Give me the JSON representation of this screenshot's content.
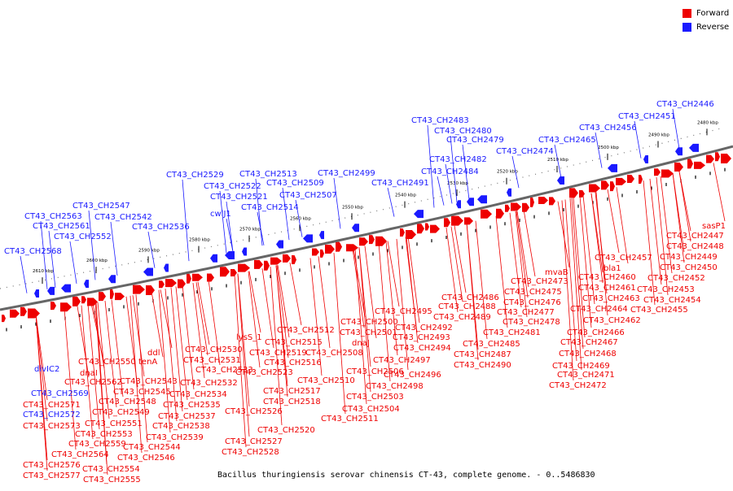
{
  "legend": {
    "forward_label": "Forward",
    "reverse_label": "Reverse",
    "forward_color": "#ee0000",
    "reverse_color": "#1a1aff"
  },
  "caption": "Bacillus thuringiensis serovar chinensis CT-43, complete genome. - 0..5486830",
  "colors": {
    "forward": "#ee0000",
    "reverse": "#1a1aff",
    "backbone": "#666666"
  },
  "scale_labels": [
    "2480 kbp",
    "2490 kbp",
    "2500 kbp",
    "2510 kbp",
    "2520 kbp",
    "2530 kbp",
    "2540 kbp",
    "2550 kbp",
    "2560 kbp",
    "2570 kbp",
    "2580 kbp",
    "2590 kbp",
    "2600 kbp",
    "2610 kbp"
  ],
  "reverse_labels": [
    "CT43_CH2446",
    "CT43_CH2451",
    "CT43_CH2456",
    "CT43_CH2465",
    "CT43_CH2474",
    "CT43_CH2483",
    "CT43_CH2480",
    "CT43_CH2479",
    "CT43_CH2482",
    "CT43_CH2484",
    "CT43_CH2491",
    "CT43_CH2499",
    "CT43_CH2513",
    "CT43_CH2509",
    "CT43_CH2507",
    "CT43_CH2514",
    "CT43_CH2529",
    "CT43_CH2522",
    "CT43_CH2521",
    "cwlJ1",
    "CT43_CH2547",
    "CT43_CH2542",
    "CT43_CH2536",
    "CT43_CH2563",
    "CT43_CH2561",
    "CT43_CH2552",
    "CT43_CH2568",
    "divIC2",
    "CT43_CH2569",
    "CT43_CH2572"
  ],
  "forward_labels": [
    "sasP1",
    "CT43_CH2447",
    "CT43_CH2448",
    "CT43_CH2449",
    "CT43_CH2450",
    "CT43_CH2452",
    "CT43_CH2453",
    "CT43_CH2454",
    "CT43_CH2455",
    "CT43_CH2457",
    "bla1",
    "CT43_CH2460",
    "CT43_CH2461",
    "CT43_CH2463",
    "CT43_CH2464",
    "CT43_CH2462",
    "CT43_CH2466",
    "CT43_CH2467",
    "CT43_CH2468",
    "CT43_CH2469",
    "CT43_CH2471",
    "CT43_CH2472",
    "mvaB",
    "CT43_CH2473",
    "CT43_CH2475",
    "CT43_CH2476",
    "CT43_CH2477",
    "CT43_CH2478",
    "CT43_CH2481",
    "CT43_CH2486",
    "CT43_CH2488",
    "CT43_CH2489",
    "CT43_CH2485",
    "CT43_CH2487",
    "CT43_CH2490",
    "CT43_CH2495",
    "CT43_CH2492",
    "CT43_CH2493",
    "CT43_CH2494",
    "CT43_CH2497",
    "CT43_CH2496",
    "CT43_CH2498",
    "CT43_CH2500",
    "CT43_CH2501",
    "dnaJ",
    "CT43_CH2506",
    "CT43_CH2503",
    "CT43_CH2504",
    "CT43_CH2511",
    "CT43_CH2512",
    "CT43_CH2515",
    "CT43_CH2508",
    "CT43_CH2510",
    "lysS_1",
    "CT43_CH2519",
    "CT43_CH2516",
    "CT43_CH2517",
    "CT43_CH2518",
    "CT43_CH2523",
    "CT43_CH2526",
    "CT43_CH2520",
    "CT43_CH2527",
    "CT43_CH2528",
    "CT43_CH2530",
    "CT43_CH2531",
    "CT43_CH2533",
    "CT43_CH2532",
    "CT43_CH2534",
    "CT43_CH2535",
    "CT43_CH2537",
    "CT43_CH2538",
    "CT43_CH2539",
    "ddl",
    "tenA",
    "CT43_CH2543",
    "CT43_CH2545",
    "CT43_CH2548",
    "CT43_CH2549",
    "CT43_CH2550",
    "CT43_CH2544",
    "CT43_CH2546",
    "dnaI",
    "CT43_CH2562",
    "CT43_CH2551",
    "CT43_CH2553",
    "CT43_CH2559",
    "CT43_CH2564",
    "CT43_CH2554",
    "CT43_CH2555",
    "CT43_CH2571",
    "CT43_CH2573",
    "CT43_CH2576",
    "CT43_CH2577"
  ]
}
